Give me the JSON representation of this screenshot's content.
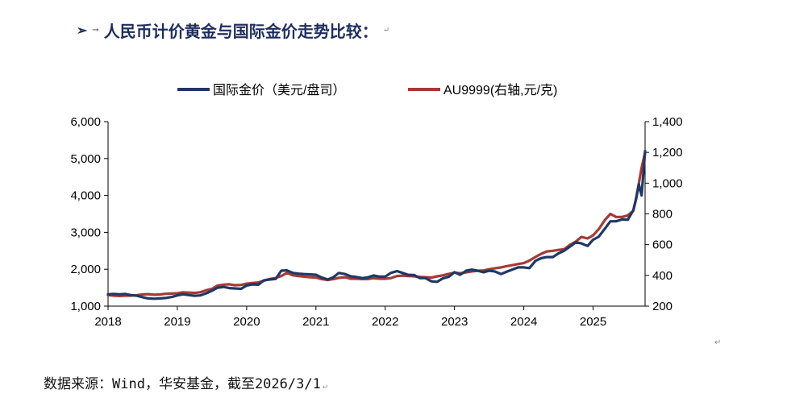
{
  "heading": {
    "bullet": "➢",
    "arrow": "→",
    "title": "人民币计价黄金与国际金价走势比较：",
    "para_mark": "↵"
  },
  "source": {
    "text": "数据来源：Wind，华安基金，截至2026/3/1",
    "para_mark": "↵"
  },
  "colors": {
    "intl": "#1F3864",
    "au": "#A53A36",
    "axis": "#000000"
  },
  "chart_data": {
    "type": "line",
    "title": "",
    "legend_position": "top-center",
    "grid": false,
    "x_axis": {
      "range": [
        2018.0,
        2025.75
      ],
      "ticks": [
        2018,
        2019,
        2020,
        2021,
        2022,
        2023,
        2024,
        2025
      ],
      "tick_labels": [
        "2018",
        "2019",
        "2020",
        "2021",
        "2022",
        "2023",
        "2024",
        "2025"
      ]
    },
    "y_left": {
      "range": [
        1000,
        6000
      ],
      "ticks": [
        1000,
        2000,
        3000,
        4000,
        5000,
        6000
      ],
      "tick_labels": [
        "1,000",
        "2,000",
        "3,000",
        "4,000",
        "5,000",
        "6,000"
      ]
    },
    "y_right": {
      "range": [
        200,
        1400
      ],
      "ticks": [
        200,
        400,
        600,
        800,
        1000,
        1200,
        1400
      ],
      "tick_labels": [
        "200",
        "400",
        "600",
        "800",
        "1,000",
        "1,200",
        "1,400"
      ]
    },
    "series": [
      {
        "name": "国际金价（美元/盘司）",
        "axis": "left",
        "color": "#1F3864",
        "x": [
          2018.0,
          2018.08,
          2018.17,
          2018.25,
          2018.33,
          2018.42,
          2018.5,
          2018.58,
          2018.67,
          2018.75,
          2018.83,
          2018.92,
          2019.0,
          2019.08,
          2019.17,
          2019.25,
          2019.33,
          2019.42,
          2019.5,
          2019.58,
          2019.67,
          2019.75,
          2019.83,
          2019.92,
          2020.0,
          2020.08,
          2020.17,
          2020.25,
          2020.33,
          2020.42,
          2020.5,
          2020.58,
          2020.67,
          2020.75,
          2020.83,
          2020.92,
          2021.0,
          2021.08,
          2021.17,
          2021.25,
          2021.33,
          2021.42,
          2021.5,
          2021.58,
          2021.67,
          2021.75,
          2021.83,
          2021.92,
          2022.0,
          2022.08,
          2022.17,
          2022.25,
          2022.33,
          2022.42,
          2022.5,
          2022.58,
          2022.67,
          2022.75,
          2022.83,
          2022.92,
          2023.0,
          2023.08,
          2023.17,
          2023.25,
          2023.33,
          2023.42,
          2023.5,
          2023.58,
          2023.67,
          2023.75,
          2023.83,
          2023.92,
          2024.0,
          2024.08,
          2024.17,
          2024.25,
          2024.33,
          2024.42,
          2024.5,
          2024.58,
          2024.67,
          2024.75,
          2024.83,
          2024.92,
          2025.0,
          2025.08,
          2025.17,
          2025.25,
          2025.33,
          2025.42,
          2025.5,
          2025.58,
          2025.62,
          2025.66,
          2025.7,
          2025.75
        ],
        "values": [
          1320,
          1330,
          1320,
          1330,
          1300,
          1280,
          1240,
          1210,
          1200,
          1210,
          1220,
          1250,
          1290,
          1320,
          1300,
          1280,
          1290,
          1350,
          1420,
          1500,
          1520,
          1490,
          1480,
          1470,
          1560,
          1590,
          1580,
          1700,
          1720,
          1740,
          1960,
          1970,
          1900,
          1880,
          1870,
          1860,
          1850,
          1780,
          1720,
          1780,
          1900,
          1870,
          1810,
          1790,
          1760,
          1780,
          1830,
          1800,
          1800,
          1900,
          1950,
          1900,
          1850,
          1840,
          1760,
          1760,
          1670,
          1660,
          1750,
          1800,
          1920,
          1850,
          1960,
          1990,
          1960,
          1920,
          1960,
          1940,
          1870,
          1930,
          1990,
          2050,
          2050,
          2030,
          2230,
          2300,
          2330,
          2330,
          2430,
          2500,
          2620,
          2730,
          2700,
          2630,
          2800,
          2880,
          3100,
          3300,
          3300,
          3350,
          3340,
          3600,
          3900,
          4300,
          4000,
          5200
        ]
      },
      {
        "name": "AU9999(右轴,元/克)",
        "axis": "right",
        "color": "#A53A36",
        "x": [
          2018.0,
          2018.08,
          2018.17,
          2018.25,
          2018.33,
          2018.42,
          2018.5,
          2018.58,
          2018.67,
          2018.75,
          2018.83,
          2018.92,
          2019.0,
          2019.08,
          2019.17,
          2019.25,
          2019.33,
          2019.42,
          2019.5,
          2019.58,
          2019.67,
          2019.75,
          2019.83,
          2019.92,
          2020.0,
          2020.08,
          2020.17,
          2020.25,
          2020.33,
          2020.42,
          2020.5,
          2020.58,
          2020.67,
          2020.75,
          2020.83,
          2020.92,
          2021.0,
          2021.08,
          2021.17,
          2021.25,
          2021.33,
          2021.42,
          2021.5,
          2021.58,
          2021.67,
          2021.75,
          2021.83,
          2021.92,
          2022.0,
          2022.08,
          2022.17,
          2022.25,
          2022.33,
          2022.42,
          2022.5,
          2022.58,
          2022.67,
          2022.75,
          2022.83,
          2022.92,
          2023.0,
          2023.08,
          2023.17,
          2023.25,
          2023.33,
          2023.42,
          2023.5,
          2023.58,
          2023.67,
          2023.75,
          2023.83,
          2023.92,
          2024.0,
          2024.08,
          2024.17,
          2024.25,
          2024.33,
          2024.42,
          2024.5,
          2024.58,
          2024.67,
          2024.75,
          2024.83,
          2024.92,
          2025.0,
          2025.08,
          2025.17,
          2025.25,
          2025.33,
          2025.42,
          2025.5,
          2025.58,
          2025.62,
          2025.66,
          2025.7,
          2025.75
        ],
        "values": [
          272,
          268,
          266,
          268,
          268,
          272,
          276,
          278,
          274,
          276,
          280,
          282,
          284,
          290,
          288,
          286,
          290,
          304,
          312,
          334,
          340,
          342,
          336,
          338,
          346,
          350,
          354,
          366,
          376,
          384,
          396,
          416,
          400,
          396,
          392,
          388,
          386,
          376,
          370,
          376,
          384,
          388,
          378,
          378,
          376,
          376,
          382,
          378,
          378,
          382,
          396,
          398,
          396,
          394,
          390,
          388,
          386,
          394,
          400,
          410,
          418,
          414,
          420,
          426,
          430,
          432,
          440,
          446,
          452,
          460,
          466,
          474,
          480,
          496,
          520,
          540,
          556,
          560,
          566,
          570,
          600,
          620,
          650,
          640,
          660,
          700,
          760,
          800,
          780,
          780,
          790,
          820,
          900,
          1000,
          1100,
          1200
        ]
      }
    ]
  }
}
